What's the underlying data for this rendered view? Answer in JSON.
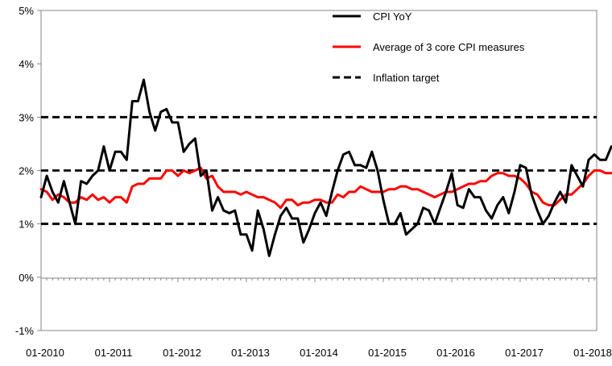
{
  "chart_data": {
    "type": "line",
    "title": "",
    "xlabel": "",
    "ylabel": "",
    "ylim": [
      -1,
      5
    ],
    "y_ticks": [
      -1,
      0,
      1,
      2,
      3,
      4,
      5
    ],
    "y_tick_labels": [
      "-1%",
      "0%",
      "1%",
      "2%",
      "3%",
      "4%",
      "5%"
    ],
    "x_tick_labels": [
      "01-2010",
      "01-2011",
      "01-2012",
      "01-2013",
      "01-2014",
      "01-2015",
      "01-2016",
      "01-2017",
      "01-2018"
    ],
    "x_start": "01-2010",
    "x_end": "06-2018",
    "grid": false,
    "legend_position": "top-right",
    "series": [
      {
        "name": "CPI YoY",
        "color": "#000000",
        "style": "solid",
        "values": [
          1.5,
          1.9,
          1.6,
          1.4,
          1.8,
          1.4,
          1.0,
          1.8,
          1.75,
          1.9,
          2.0,
          2.45,
          2.0,
          2.35,
          2.35,
          2.2,
          3.3,
          3.3,
          3.7,
          3.1,
          2.75,
          3.1,
          3.15,
          2.9,
          2.9,
          2.35,
          2.5,
          2.6,
          1.9,
          2.0,
          1.25,
          1.5,
          1.25,
          1.2,
          1.25,
          0.8,
          0.8,
          0.5,
          1.25,
          0.9,
          0.4,
          0.8,
          1.15,
          1.3,
          1.1,
          1.1,
          0.65,
          0.9,
          1.2,
          1.4,
          1.15,
          1.6,
          2.0,
          2.3,
          2.35,
          2.1,
          2.1,
          2.05,
          2.35,
          2.0,
          1.45,
          1.0,
          1.0,
          1.2,
          0.8,
          0.9,
          1.0,
          1.3,
          1.25,
          1.0,
          1.3,
          1.6,
          1.95,
          1.35,
          1.3,
          1.65,
          1.5,
          1.5,
          1.25,
          1.1,
          1.35,
          1.5,
          1.2,
          1.6,
          2.1,
          2.05,
          1.55,
          1.25,
          1.0,
          1.15,
          1.4,
          1.6,
          1.4,
          2.1,
          1.9,
          1.7,
          2.2,
          2.3,
          2.2,
          2.2,
          2.45
        ]
      },
      {
        "name": "Average of 3 core CPI measures",
        "color": "#ff0000",
        "style": "solid",
        "values": [
          1.65,
          1.6,
          1.45,
          1.55,
          1.5,
          1.4,
          1.4,
          1.5,
          1.45,
          1.55,
          1.45,
          1.5,
          1.4,
          1.5,
          1.5,
          1.4,
          1.7,
          1.75,
          1.75,
          1.85,
          1.85,
          1.85,
          2.0,
          2.0,
          1.9,
          2.0,
          1.95,
          2.0,
          2.05,
          1.85,
          1.9,
          1.7,
          1.6,
          1.6,
          1.6,
          1.55,
          1.6,
          1.55,
          1.5,
          1.5,
          1.45,
          1.4,
          1.3,
          1.45,
          1.45,
          1.35,
          1.4,
          1.4,
          1.45,
          1.45,
          1.4,
          1.4,
          1.55,
          1.5,
          1.6,
          1.6,
          1.7,
          1.65,
          1.6,
          1.6,
          1.6,
          1.65,
          1.65,
          1.7,
          1.7,
          1.65,
          1.65,
          1.6,
          1.55,
          1.5,
          1.55,
          1.6,
          1.6,
          1.65,
          1.7,
          1.75,
          1.75,
          1.8,
          1.8,
          1.9,
          1.95,
          1.95,
          1.9,
          1.9,
          1.85,
          1.75,
          1.6,
          1.55,
          1.4,
          1.35,
          1.35,
          1.45,
          1.55,
          1.55,
          1.65,
          1.75,
          1.9,
          2.0,
          2.0,
          1.95,
          1.95
        ]
      },
      {
        "name": "Inflation target",
        "color": "#000000",
        "style": "dashed",
        "levels": [
          1,
          2,
          3
        ]
      }
    ]
  }
}
